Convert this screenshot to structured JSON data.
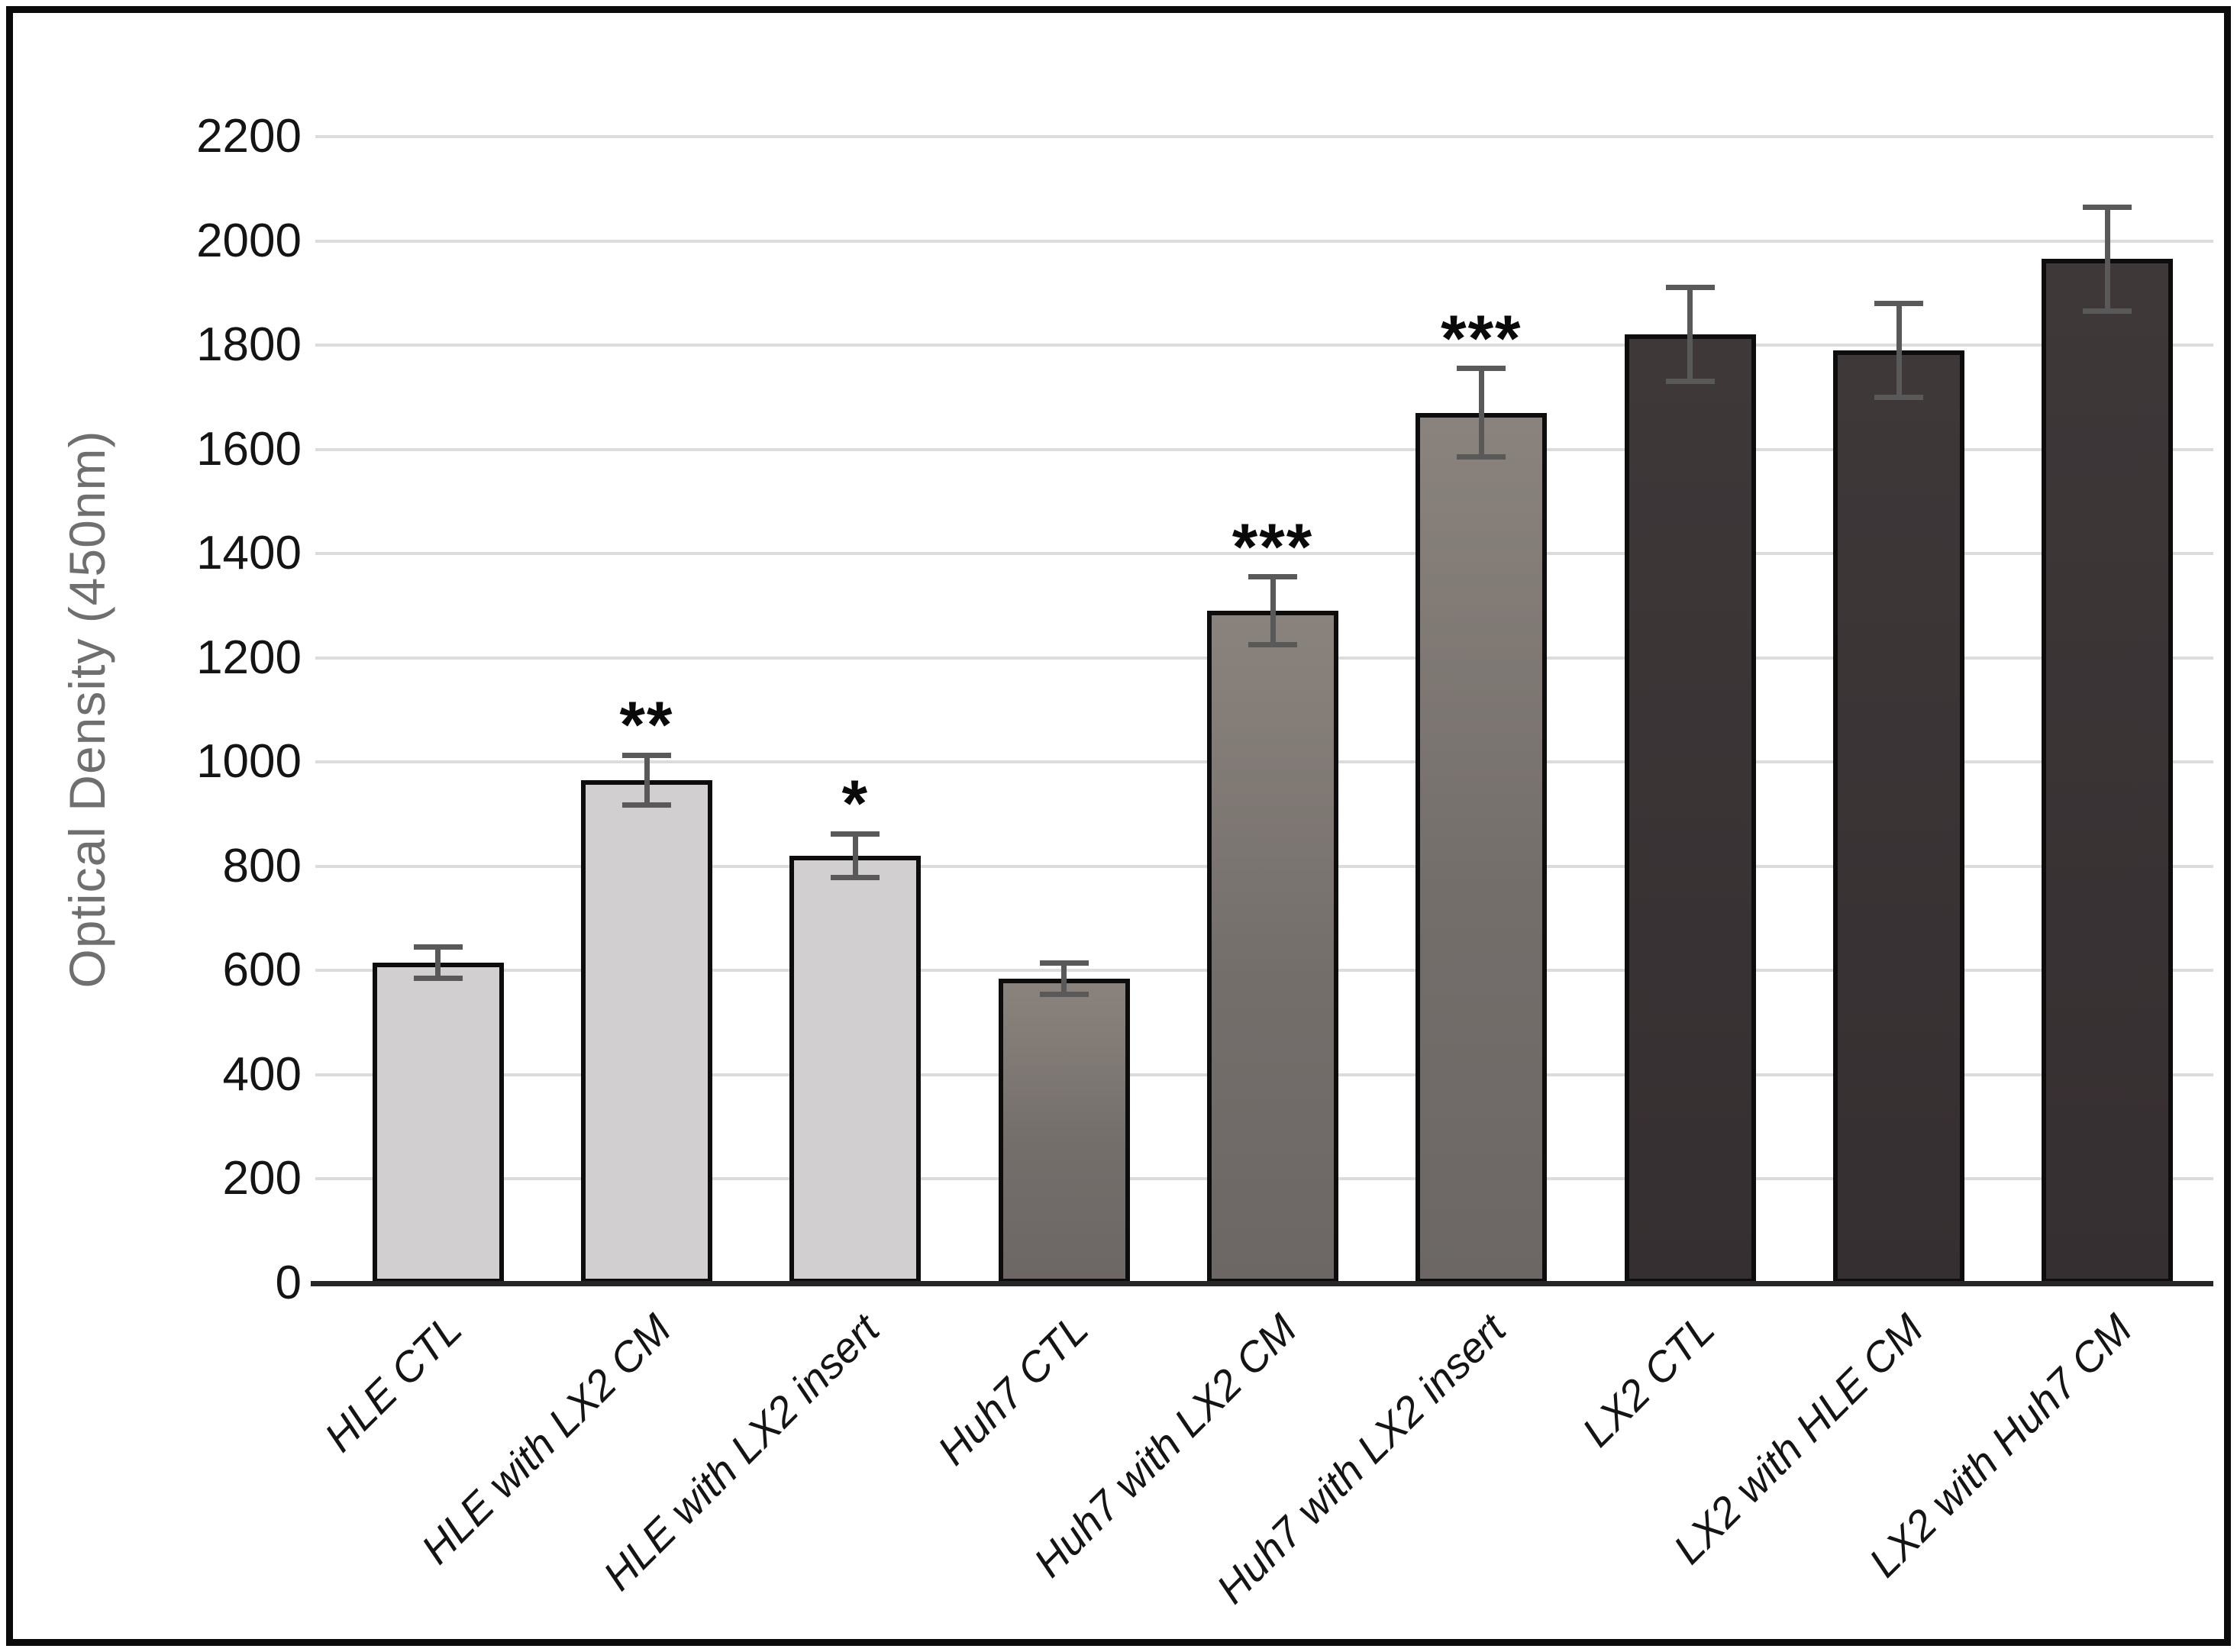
{
  "figure": {
    "kind": "scientific bar chart with error bars and significance stars",
    "background": "#ffffff",
    "border_color": "#0b0b0b"
  },
  "chart_data": {
    "type": "bar",
    "title": "",
    "xlabel": "",
    "ylabel": "Optical Density (450nm)",
    "ylim": [
      0,
      2200
    ],
    "ytick_interval": 200,
    "yticks": [
      0,
      200,
      400,
      600,
      800,
      1000,
      1200,
      1400,
      1600,
      1800,
      2000,
      2200
    ],
    "grid": true,
    "legend": false,
    "categories": [
      "HLE CTL",
      "HLE with LX2 CM",
      "HLE with LX2 insert",
      "Huh7 CTL",
      "Huh7 with LX2 CM",
      "Huh7 with LX2 insert",
      "LX2 CTL",
      "LX2 with HLE CM",
      "LX2 with Huh7 CM"
    ],
    "values": [
      615,
      965,
      820,
      585,
      1290,
      1670,
      1820,
      1790,
      1965
    ],
    "errors": [
      30,
      48,
      42,
      30,
      65,
      85,
      90,
      90,
      100
    ],
    "significance": [
      "",
      "**",
      "*",
      "",
      "***",
      "***",
      "",
      "",
      ""
    ],
    "series_groups": [
      "HLE",
      "HLE",
      "HLE",
      "Huh7",
      "Huh7",
      "Huh7",
      "LX2",
      "LX2",
      "LX2"
    ],
    "bar_color_class": [
      "light",
      "light",
      "light",
      "medium",
      "medium",
      "medium",
      "dark",
      "dark",
      "dark"
    ],
    "colors": {
      "light_gray_bar": "#d1cfcf",
      "medium_gray_bar": "#7b7470",
      "dark_gray_bar": "#3a3436",
      "bar_outline": "#0d0d0d",
      "gridline": "#dcdcdc",
      "error_bar": "#595959",
      "axis_line": "#262626",
      "axis_title_text": "#6f6f6f",
      "tick_text": "#141414"
    }
  }
}
